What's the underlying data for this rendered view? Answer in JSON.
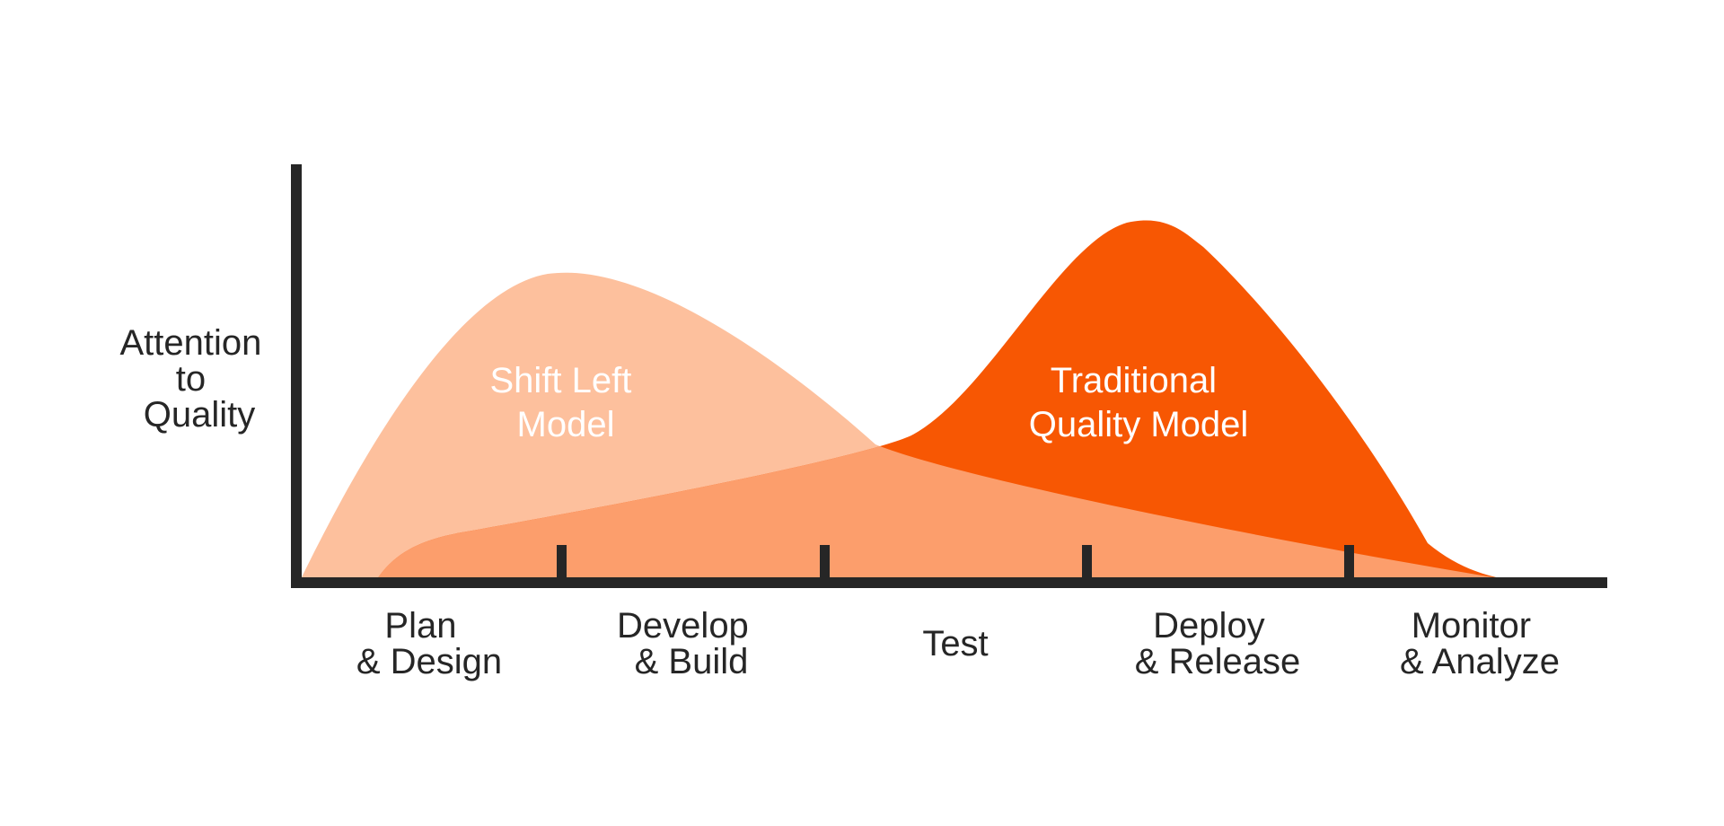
{
  "y_axis_label": [
    "Attention",
    "to",
    "Quality"
  ],
  "stages": [
    {
      "line1": "Plan",
      "line2": "& Design"
    },
    {
      "line1": "Develop",
      "line2": "& Build"
    },
    {
      "line1": "Test",
      "line2": ""
    },
    {
      "line1": "Deploy",
      "line2": "& Release"
    },
    {
      "line1": "Monitor",
      "line2": "& Analyze"
    }
  ],
  "curves": {
    "shift_left": {
      "line1": "Shift Left",
      "line2": "Model",
      "color": "#FDC09D"
    },
    "traditional": {
      "line1": "Traditional",
      "line2": "Quality Model",
      "color": "#F75703"
    },
    "overlap_color": "#FC9E6C"
  },
  "axis_color": "#262626"
}
